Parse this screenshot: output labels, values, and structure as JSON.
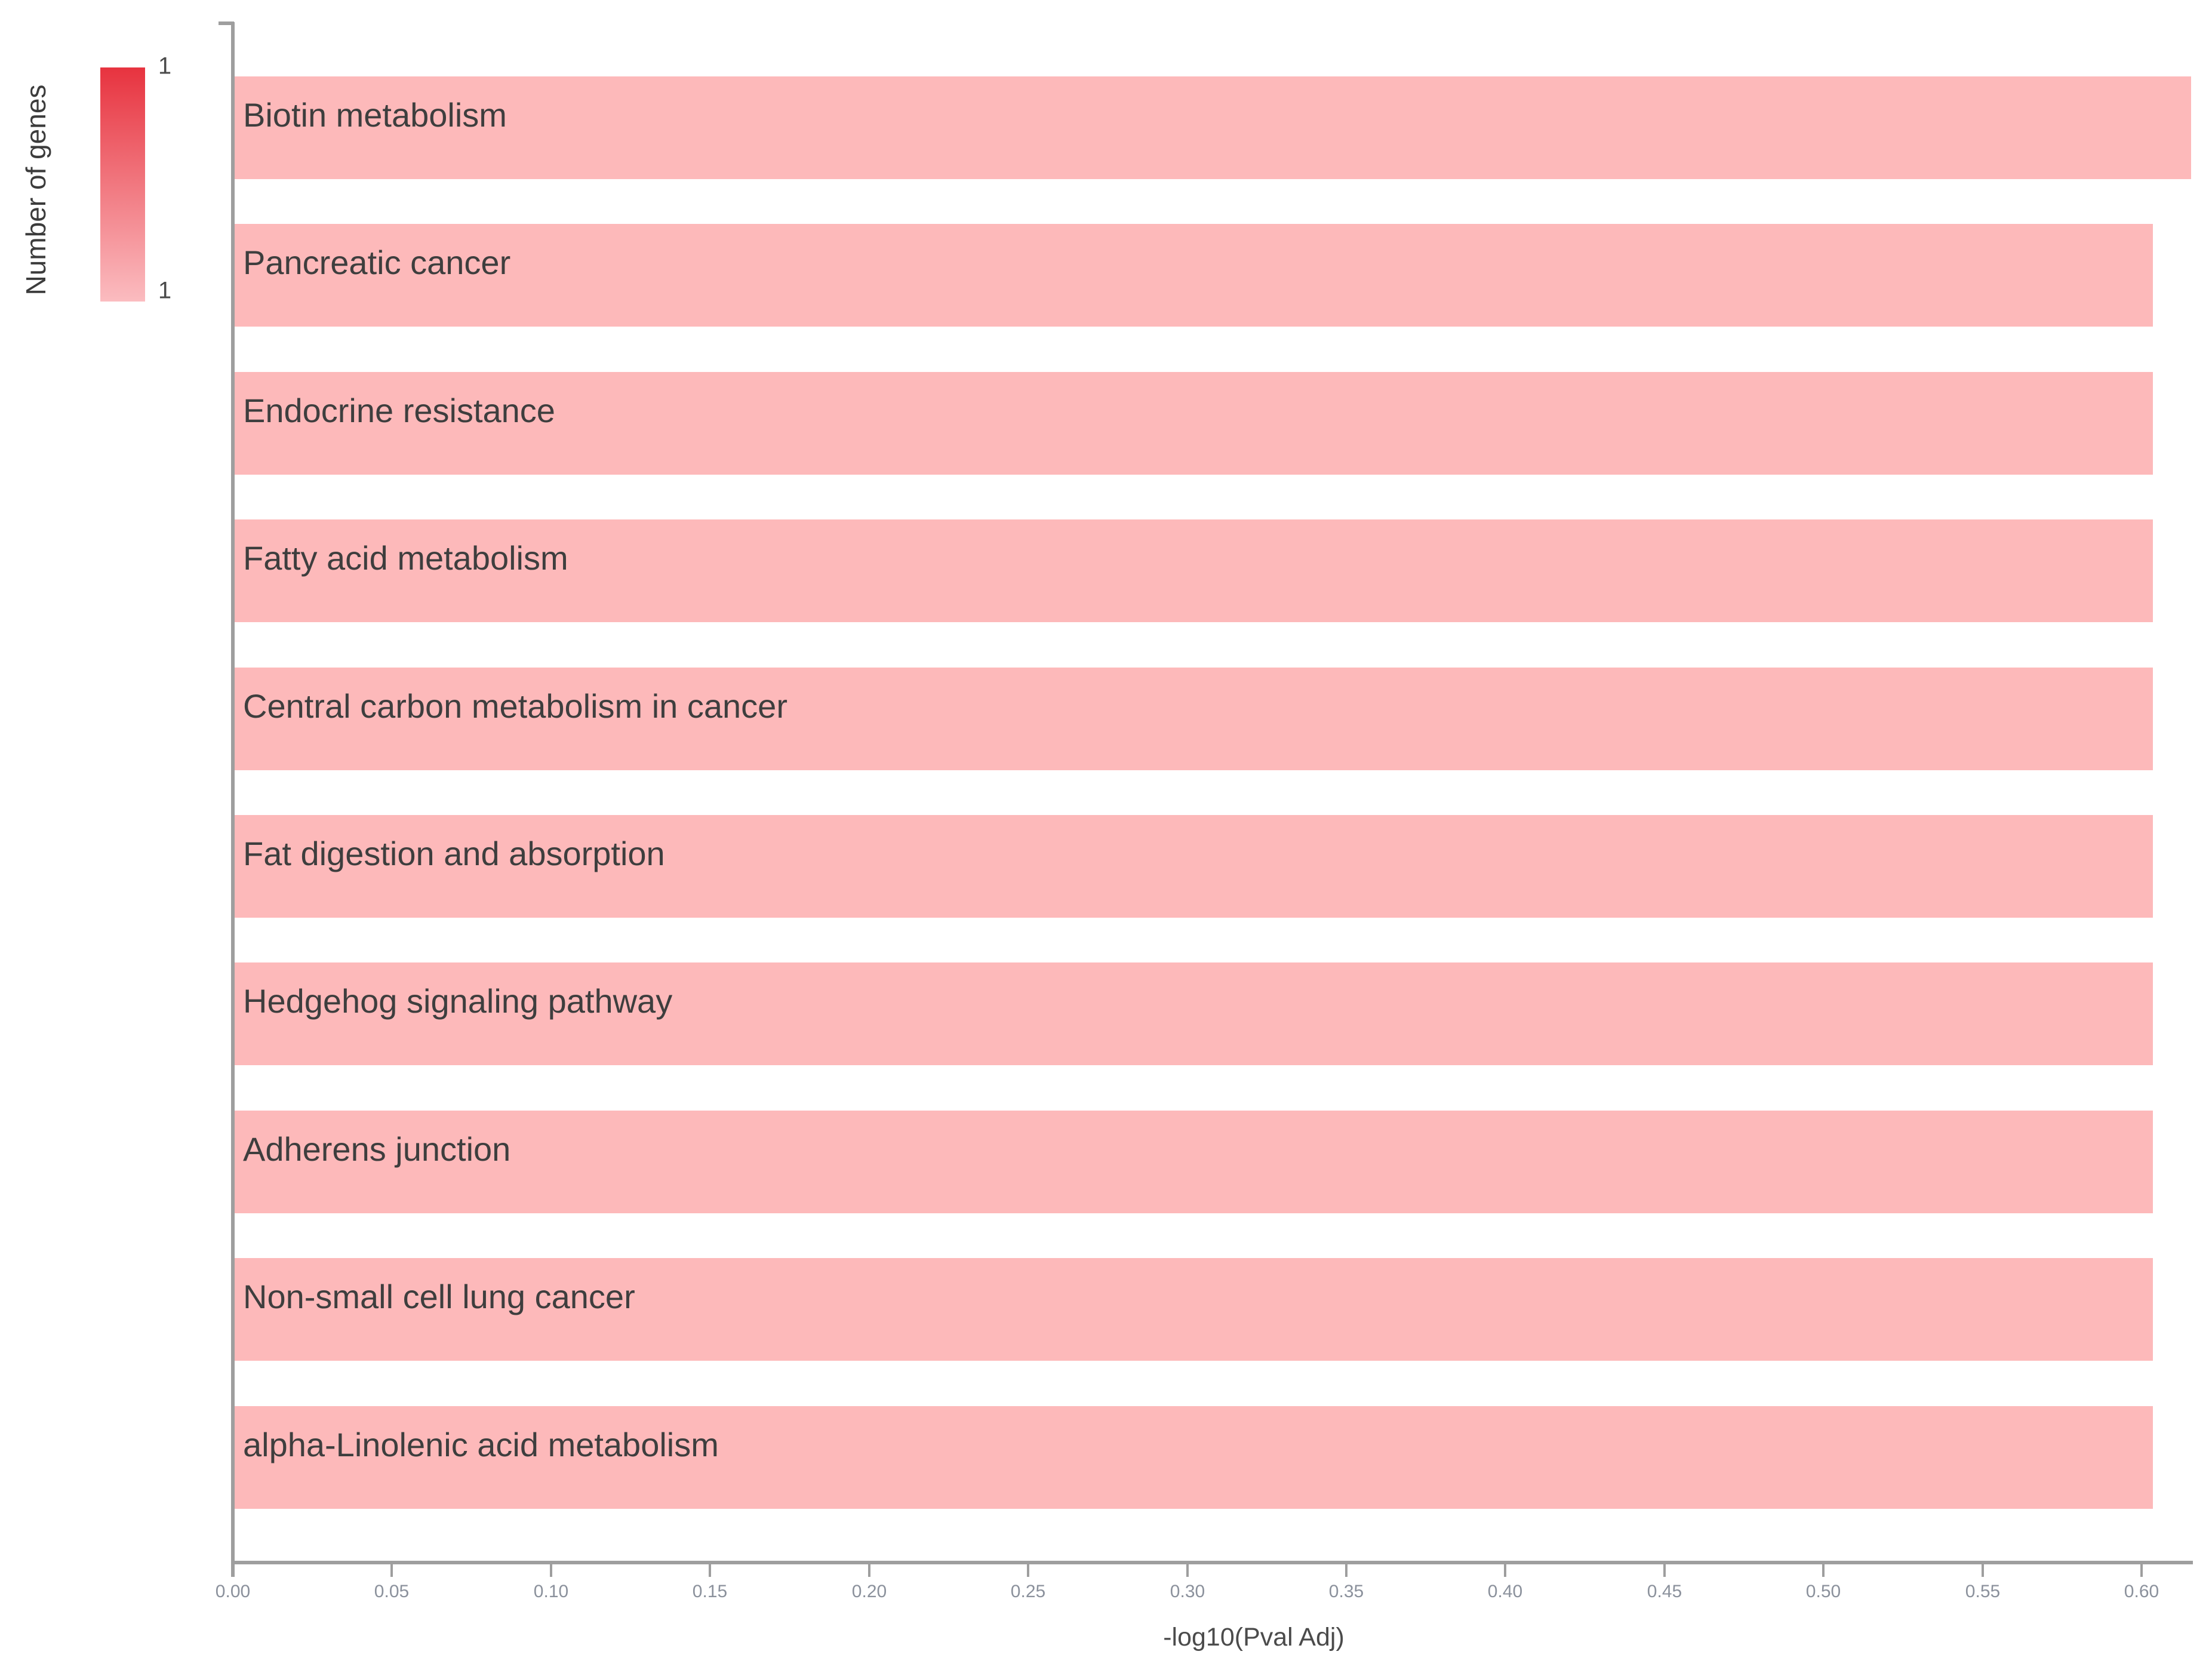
{
  "chart_data": {
    "type": "bar",
    "orientation": "horizontal",
    "title": "",
    "xlabel": "-log10(Pval Adj)",
    "ylabel": "",
    "categories": [
      "Biotin metabolism",
      "Pancreatic cancer",
      "Endocrine resistance",
      "Fatty acid metabolism",
      "Central carbon metabolism in cancer",
      "Fat digestion and absorption",
      "Hedgehog signaling pathway",
      "Adherens junction",
      "Non-small cell lung cancer",
      "alpha-Linolenic acid metabolism"
    ],
    "values": [
      0.615,
      0.603,
      0.603,
      0.603,
      0.603,
      0.603,
      0.603,
      0.603,
      0.603,
      0.603
    ],
    "x_ticks": [
      "0.00",
      "0.05",
      "0.10",
      "0.15",
      "0.20",
      "0.25",
      "0.30",
      "0.35",
      "0.40",
      "0.45",
      "0.50",
      "0.55",
      "0.60"
    ],
    "x_tick_step": 0.05,
    "xlim": [
      0.0,
      0.617
    ],
    "grid": false,
    "legend_position": "top-left",
    "colorbar": {
      "title": "Number of genes",
      "max_label": "1",
      "min_label": "1",
      "top_color": "#e7333f",
      "bottom_color": "#fbbcc0"
    },
    "colors": {
      "bar_fill": "#fdb9ba",
      "axis_line": "#9e9e9e",
      "tick_label": "#8b919c",
      "bar_label": "#3e3e3e",
      "axis_title": "#4b4b4b",
      "background": "#ffffff"
    }
  }
}
